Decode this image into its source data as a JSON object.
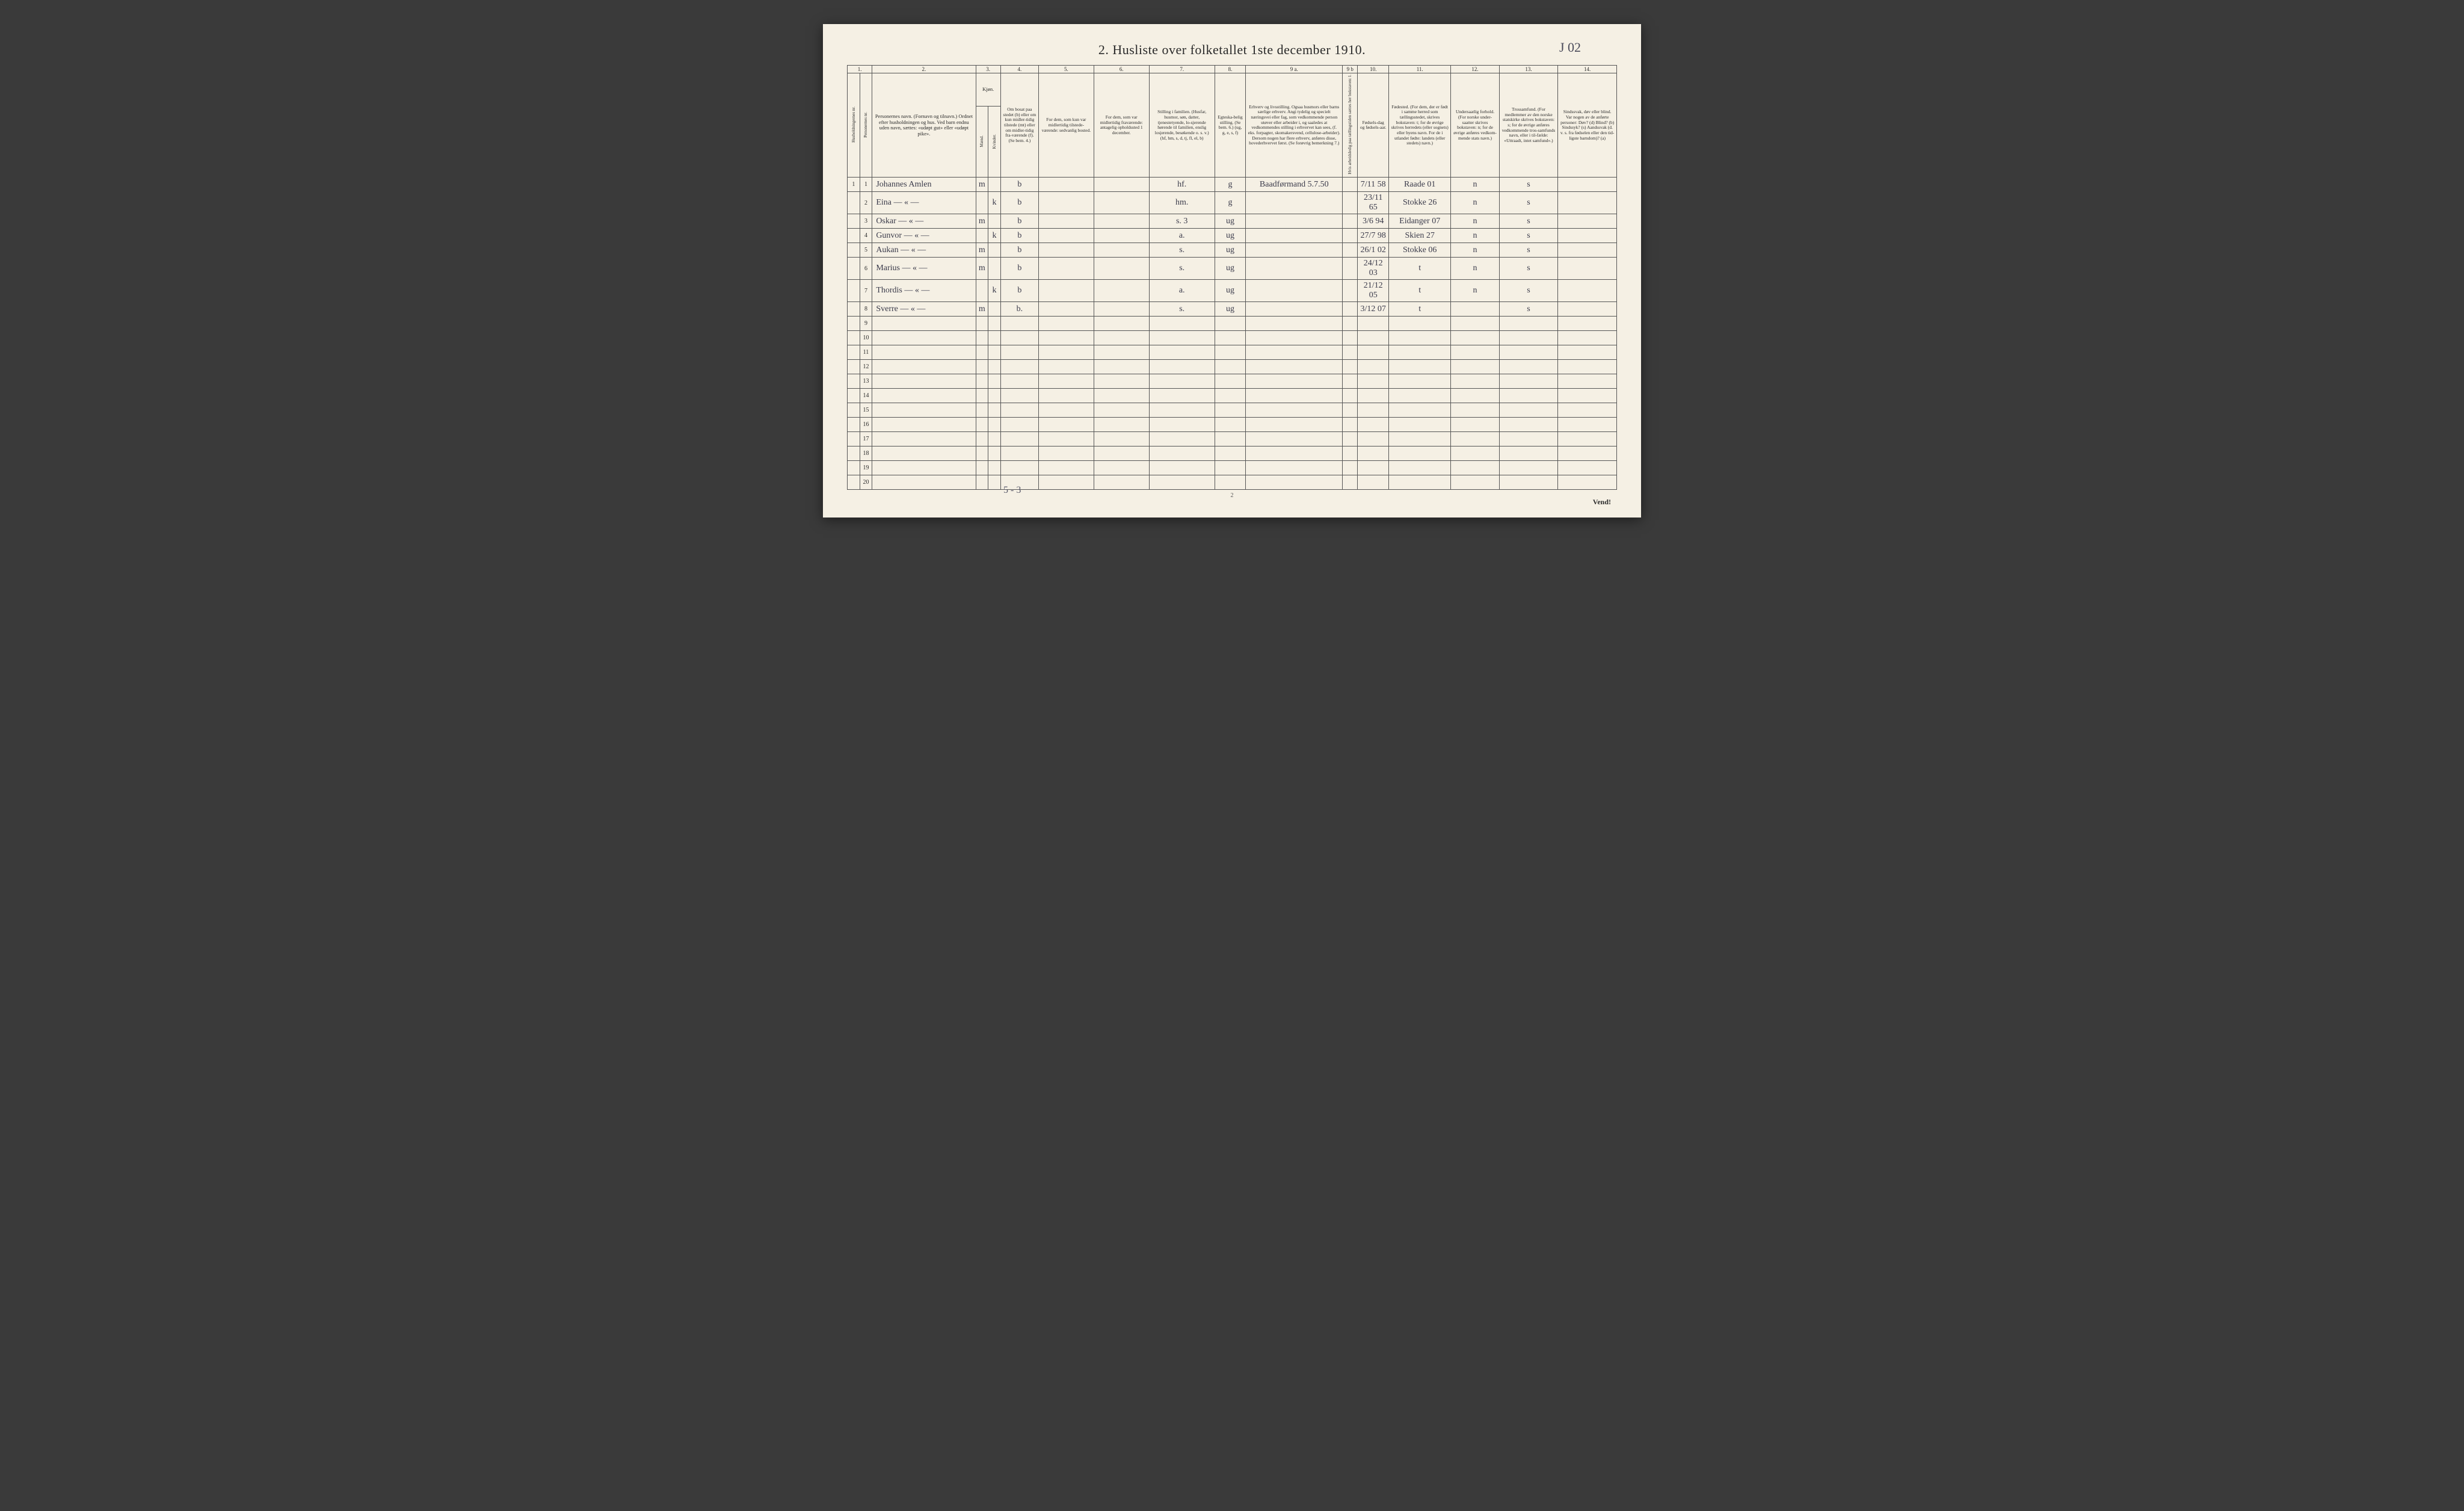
{
  "title": "2.  Husliste over folketallet 1ste december 1910.",
  "title_note": "J 02",
  "page_number_bottom": "2",
  "vend": "Vend!",
  "tally": "5 - 3",
  "col_numbers": [
    "1.",
    "2.",
    "3.",
    "4.",
    "5.",
    "6.",
    "7.",
    "8.",
    "9 a.",
    "9 b",
    "10.",
    "11.",
    "12.",
    "13.",
    "14."
  ],
  "headers": {
    "h1a": "Husholdningernes nr.",
    "h1b": "Personernes nr.",
    "h2": "Personernes navn.\n(Fornavn og tilnavn.)\nOrdnet efter husholdningen og hus.\nVed barn endnu uden navn, sættes: «udøpt gut» eller «udøpt pike».",
    "h3": "Kjøn.",
    "h3a": "Mænd.",
    "h3b": "Kvinder.",
    "h4": "Om bosat paa stedet (b) eller om kun midler-tidig tilstede (mt) eller om midler-tidig fra-værende (f). (Se bem. 4.)",
    "h5": "For dem, som kun var midlertidig tilstede-værende:\nsedvanlig bosted.",
    "h6": "For dem, som var midlertidig fraværende:\nantagelig opholdssted 1 december.",
    "h7": "Stilling i familien.\n(Husfar, husmor, søn, datter, tjenestetyende, lo-sjerende hørende til familien, enslig losjerende, besøkende o. s. v.)\n(hf, hm, s, d, tj, fl, el, b)",
    "h8": "Egteska-belig stilling. (Se bem. 6.)\n(ug, g, e, s, f)",
    "h9a": "Erhverv og livsstilling.\nOgsaa husmors eller barns særlige erhverv. Angi tydelig og specielt næringsvei eller fag, som vedkommende person utøver eller arbeider i, og saaledes at vedkommendes stilling i erhvervet kan sees, (f. eks. forpagter, skomakersvend, cellulose-arbeider). Dersom nogen har flere erhverv, anføres disse, hovederhvervet først.\n(Se forøvrig bemerkning 7.)",
    "h9b": "Hvis arbeidsledig paa tællingstiden sættes her bokstaven: l.",
    "h10": "Fødsels-dag og fødsels-aar.",
    "h11": "Fødested.\n(For dem, der er født i samme herred som tællingsstedet, skrives bokstaven: t; for de øvrige skrives herredets (eller sognets) eller byens navn. For de i utlandet fødte: landets (eller stedets) navn.)",
    "h12": "Undersaatlig forhold.\n(For norske under-saatter skrives bokstaven: n; for de øvrige anføres vedkom-mende stats navn.)",
    "h13": "Trossamfund.\n(For medlemmer av den norske statskirke skrives bokstaven: s; for de øvrige anføres vedkommende tros-samfunds navn, eller i til-fælde: «Uttraadt, intet samfund».)",
    "h14": "Sindssvak, døv eller blind.\nVar nogen av de anførte personer:\nDøv? (d)\nBlind? (b)\nSindssyk? (s)\nAandssvak (d. v. s. fra fødselen eller den tid-ligste barndom)? (a)"
  },
  "rows": [
    {
      "hnr": "1",
      "pnr": "1",
      "name": "Johannes Amlen",
      "m": "m",
      "k": "",
      "c4": "b",
      "c5": "",
      "c6": "",
      "c7": "hf.",
      "c8": "g",
      "c9a": "Baadførmand  5.7.50",
      "c9b": "",
      "c10": "7/11 58",
      "c11": "Raade  01",
      "c12": "n",
      "c13": "s",
      "c14": ""
    },
    {
      "hnr": "",
      "pnr": "2",
      "name": "Eina   — « —",
      "m": "",
      "k": "k",
      "c4": "b",
      "c5": "",
      "c6": "",
      "c7": "hm.",
      "c8": "g",
      "c9a": "",
      "c9b": "",
      "c10": "23/11 65",
      "c11": "Stokke 26",
      "c12": "n",
      "c13": "s",
      "c14": ""
    },
    {
      "hnr": "",
      "pnr": "3",
      "name": "Oskar  — « —",
      "m": "m",
      "k": "",
      "c4": "b",
      "c5": "",
      "c6": "",
      "c7": "s.   3",
      "c8": "ug",
      "c9a": "",
      "c9b": "",
      "c10": "3/6 94",
      "c11": "Eidanger 07",
      "c12": "n",
      "c13": "s",
      "c14": ""
    },
    {
      "hnr": "",
      "pnr": "4",
      "name": "Gunvor — « —",
      "m": "",
      "k": "k",
      "c4": "b",
      "c5": "",
      "c6": "",
      "c7": "a.",
      "c8": "ug",
      "c9a": "",
      "c9b": "",
      "c10": "27/7 98",
      "c11": "Skien 27",
      "c12": "n",
      "c13": "s",
      "c14": ""
    },
    {
      "hnr": "",
      "pnr": "5",
      "name": "Aukan  — « —",
      "m": "m",
      "k": "",
      "c4": "b",
      "c5": "",
      "c6": "",
      "c7": "s.",
      "c8": "ug",
      "c9a": "",
      "c9b": "",
      "c10": "26/1 02",
      "c11": "Stokke 06",
      "c12": "n",
      "c13": "s",
      "c14": ""
    },
    {
      "hnr": "",
      "pnr": "6",
      "name": "Marius — « —",
      "m": "m",
      "k": "",
      "c4": "b",
      "c5": "",
      "c6": "",
      "c7": "s.",
      "c8": "ug",
      "c9a": "",
      "c9b": "",
      "c10": "24/12 03",
      "c11": "t",
      "c12": "n",
      "c13": "s",
      "c14": ""
    },
    {
      "hnr": "",
      "pnr": "7",
      "name": "Thordis — « —",
      "m": "",
      "k": "k",
      "c4": "b",
      "c5": "",
      "c6": "",
      "c7": "a.",
      "c8": "ug",
      "c9a": "",
      "c9b": "",
      "c10": "21/12 05",
      "c11": "t",
      "c12": "n",
      "c13": "s",
      "c14": ""
    },
    {
      "hnr": "",
      "pnr": "8",
      "name": "Sverre — « —",
      "m": "m",
      "k": "",
      "c4": "b.",
      "c5": "",
      "c6": "",
      "c7": "s.",
      "c8": "ug",
      "c9a": "",
      "c9b": "",
      "c10": "3/12 07",
      "c11": "t",
      "c12": "",
      "c13": "s",
      "c14": ""
    },
    {
      "hnr": "",
      "pnr": "9",
      "name": "",
      "m": "",
      "k": "",
      "c4": "",
      "c5": "",
      "c6": "",
      "c7": "",
      "c8": "",
      "c9a": "",
      "c9b": "",
      "c10": "",
      "c11": "",
      "c12": "",
      "c13": "",
      "c14": ""
    },
    {
      "hnr": "",
      "pnr": "10",
      "name": "",
      "m": "",
      "k": "",
      "c4": "",
      "c5": "",
      "c6": "",
      "c7": "",
      "c8": "",
      "c9a": "",
      "c9b": "",
      "c10": "",
      "c11": "",
      "c12": "",
      "c13": "",
      "c14": ""
    },
    {
      "hnr": "",
      "pnr": "11",
      "name": "",
      "m": "",
      "k": "",
      "c4": "",
      "c5": "",
      "c6": "",
      "c7": "",
      "c8": "",
      "c9a": "",
      "c9b": "",
      "c10": "",
      "c11": "",
      "c12": "",
      "c13": "",
      "c14": ""
    },
    {
      "hnr": "",
      "pnr": "12",
      "name": "",
      "m": "",
      "k": "",
      "c4": "",
      "c5": "",
      "c6": "",
      "c7": "",
      "c8": "",
      "c9a": "",
      "c9b": "",
      "c10": "",
      "c11": "",
      "c12": "",
      "c13": "",
      "c14": ""
    },
    {
      "hnr": "",
      "pnr": "13",
      "name": "",
      "m": "",
      "k": "",
      "c4": "",
      "c5": "",
      "c6": "",
      "c7": "",
      "c8": "",
      "c9a": "",
      "c9b": "",
      "c10": "",
      "c11": "",
      "c12": "",
      "c13": "",
      "c14": ""
    },
    {
      "hnr": "",
      "pnr": "14",
      "name": "",
      "m": "",
      "k": "",
      "c4": "",
      "c5": "",
      "c6": "",
      "c7": "",
      "c8": "",
      "c9a": "",
      "c9b": "",
      "c10": "",
      "c11": "",
      "c12": "",
      "c13": "",
      "c14": ""
    },
    {
      "hnr": "",
      "pnr": "15",
      "name": "",
      "m": "",
      "k": "",
      "c4": "",
      "c5": "",
      "c6": "",
      "c7": "",
      "c8": "",
      "c9a": "",
      "c9b": "",
      "c10": "",
      "c11": "",
      "c12": "",
      "c13": "",
      "c14": ""
    },
    {
      "hnr": "",
      "pnr": "16",
      "name": "",
      "m": "",
      "k": "",
      "c4": "",
      "c5": "",
      "c6": "",
      "c7": "",
      "c8": "",
      "c9a": "",
      "c9b": "",
      "c10": "",
      "c11": "",
      "c12": "",
      "c13": "",
      "c14": ""
    },
    {
      "hnr": "",
      "pnr": "17",
      "name": "",
      "m": "",
      "k": "",
      "c4": "",
      "c5": "",
      "c6": "",
      "c7": "",
      "c8": "",
      "c9a": "",
      "c9b": "",
      "c10": "",
      "c11": "",
      "c12": "",
      "c13": "",
      "c14": ""
    },
    {
      "hnr": "",
      "pnr": "18",
      "name": "",
      "m": "",
      "k": "",
      "c4": "",
      "c5": "",
      "c6": "",
      "c7": "",
      "c8": "",
      "c9a": "",
      "c9b": "",
      "c10": "",
      "c11": "",
      "c12": "",
      "c13": "",
      "c14": ""
    },
    {
      "hnr": "",
      "pnr": "19",
      "name": "",
      "m": "",
      "k": "",
      "c4": "",
      "c5": "",
      "c6": "",
      "c7": "",
      "c8": "",
      "c9a": "",
      "c9b": "",
      "c10": "",
      "c11": "",
      "c12": "",
      "c13": "",
      "c14": ""
    },
    {
      "hnr": "",
      "pnr": "20",
      "name": "",
      "m": "",
      "k": "",
      "c4": "",
      "c5": "",
      "c6": "",
      "c7": "",
      "c8": "",
      "c9a": "",
      "c9b": "",
      "c10": "",
      "c11": "",
      "c12": "",
      "c13": "",
      "c14": ""
    }
  ],
  "colors": {
    "page_bg": "#f5f0e4",
    "ink": "#2a2a2a",
    "rule": "#555555",
    "handwriting": "#3a3a4a"
  }
}
